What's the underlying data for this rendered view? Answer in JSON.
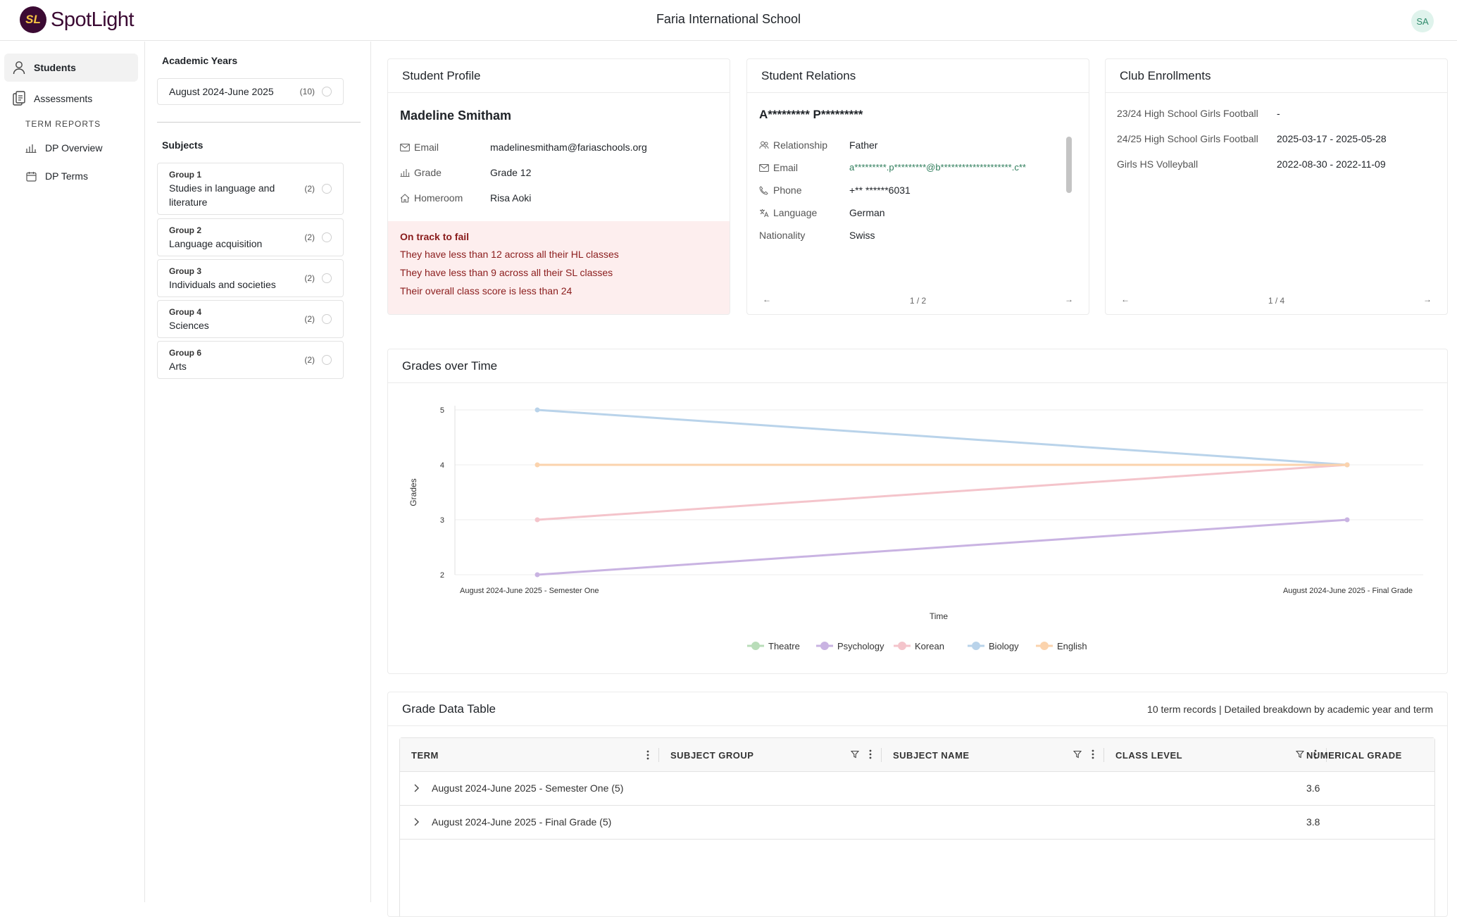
{
  "header": {
    "logo_mark": "SL",
    "logo_text": "SpotLight",
    "school": "Faria International School",
    "avatar": "SA"
  },
  "sidebar": {
    "items": [
      {
        "label": "Students",
        "icon": "user-icon"
      },
      {
        "label": "Assessments",
        "icon": "clipboard-icon"
      }
    ],
    "section_label": "TERM REPORTS",
    "sub_items": [
      {
        "label": "DP Overview",
        "icon": "bar-chart-icon"
      },
      {
        "label": "DP Terms",
        "icon": "calendar-icon"
      }
    ]
  },
  "filters": {
    "years_title": "Academic Years",
    "year": {
      "label": "August 2024-June 2025",
      "count": "(10)"
    },
    "subjects_title": "Subjects",
    "groups": [
      {
        "group": "Group 1",
        "name": "Studies in language and literature",
        "count": "(2)"
      },
      {
        "group": "Group 2",
        "name": "Language acquisition",
        "count": "(2)"
      },
      {
        "group": "Group 3",
        "name": "Individuals and societies",
        "count": "(2)"
      },
      {
        "group": "Group 4",
        "name": "Sciences",
        "count": "(2)"
      },
      {
        "group": "Group 6",
        "name": "Arts",
        "count": "(2)"
      }
    ]
  },
  "profile": {
    "title": "Student Profile",
    "name": "Madeline Smitham",
    "email_label": "Email",
    "email": "madelinesmitham@fariaschools.org",
    "grade_label": "Grade",
    "grade": "Grade 12",
    "homeroom_label": "Homeroom",
    "homeroom": "Risa Aoki",
    "alert": {
      "title": "On track to fail",
      "lines": [
        "They have less than 12 across all their HL classes",
        "They have less than 9 across all their SL classes",
        "Their overall class score is less than 24"
      ]
    }
  },
  "relations": {
    "title": "Student Relations",
    "name": "A********* P*********",
    "relationship_label": "Relationship",
    "relationship": "Father",
    "email_label": "Email",
    "email": "a*********.p*********@b********************.c**",
    "phone_label": "Phone",
    "phone": "+** ******6031",
    "language_label": "Language",
    "language": "German",
    "nationality_label": "Nationality",
    "nationality": "Swiss",
    "page": "1 / 2"
  },
  "clubs": {
    "title": "Club Enrollments",
    "rows": [
      {
        "name": "23/24 High School Girls Football",
        "dates": "-"
      },
      {
        "name": "24/25 High School Girls Football",
        "dates": "2025-03-17 - 2025-05-28"
      },
      {
        "name": "Girls HS Volleyball",
        "dates": "2022-08-30 - 2022-11-09"
      }
    ],
    "page": "1 / 4"
  },
  "chart_title": "Grades over Time",
  "chart_data": {
    "type": "line",
    "x": [
      "August 2024-June 2025 - Semester One",
      "August 2024-June 2025 - Final Grade"
    ],
    "xlabel": "Time",
    "ylabel": "Grades",
    "ylim": [
      2,
      5
    ],
    "yticks": [
      "5",
      "4",
      "3",
      "2"
    ],
    "grid": true,
    "legend": "bottom",
    "series": [
      {
        "name": "Theatre",
        "color": "#b9ddb9",
        "values": [
          null,
          null
        ]
      },
      {
        "name": "Psychology",
        "color": "#c9b3e2",
        "values": [
          2,
          3
        ]
      },
      {
        "name": "Korean",
        "color": "#f4c4cb",
        "values": [
          3,
          4
        ]
      },
      {
        "name": "Biology",
        "color": "#b9d3ea",
        "values": [
          5,
          4
        ]
      },
      {
        "name": "English",
        "color": "#fbd3ad",
        "values": [
          4,
          4
        ]
      }
    ]
  },
  "table": {
    "title": "Grade Data Table",
    "subtitle": "10 term records | Detailed breakdown by academic year and term",
    "columns": [
      "TERM",
      "SUBJECT GROUP",
      "SUBJECT NAME",
      "CLASS LEVEL",
      "NUMERICAL GRADE"
    ],
    "rows": [
      {
        "term": "August 2024-June 2025 - Semester One (5)",
        "grade": "3.6"
      },
      {
        "term": "August 2024-June 2025 - Final Grade (5)",
        "grade": "3.8"
      }
    ]
  }
}
